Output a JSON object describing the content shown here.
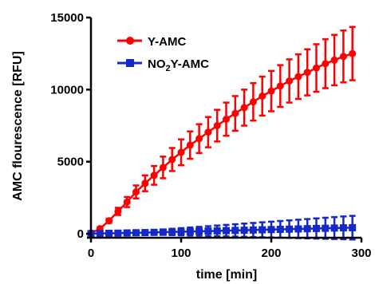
{
  "chart_data": {
    "type": "line",
    "xlabel": "time [min]",
    "ylabel": "AMC flourescence [RFU]",
    "xlim": [
      0,
      300
    ],
    "ylim": [
      0,
      15000
    ],
    "x_ticks": [
      0,
      100,
      200,
      300
    ],
    "y_ticks": [
      0,
      5000,
      10000,
      15000
    ],
    "x_tick_labels": [
      "0",
      "100",
      "200",
      "300"
    ],
    "y_tick_labels": [
      "0",
      "5000",
      "10000",
      "15000"
    ],
    "legend_position": "top-left",
    "grid": false,
    "series": [
      {
        "name": "Y-AMC",
        "color": "#ff0000",
        "marker": "circle",
        "x": [
          0,
          10,
          20,
          30,
          40,
          50,
          60,
          70,
          80,
          90,
          100,
          110,
          120,
          130,
          140,
          150,
          160,
          170,
          180,
          190,
          200,
          210,
          220,
          230,
          240,
          250,
          260,
          270,
          280,
          290
        ],
        "y": [
          50,
          350,
          900,
          1550,
          2200,
          2900,
          3500,
          4050,
          4600,
          5150,
          5650,
          6150,
          6600,
          7050,
          7500,
          7950,
          8350,
          8750,
          9150,
          9550,
          9900,
          10250,
          10600,
          10900,
          11200,
          11500,
          11800,
          12050,
          12300,
          12500
        ],
        "error": [
          20,
          100,
          150,
          250,
          350,
          450,
          550,
          650,
          750,
          800,
          900,
          950,
          1000,
          1050,
          1100,
          1150,
          1200,
          1250,
          1300,
          1350,
          1400,
          1450,
          1500,
          1550,
          1600,
          1650,
          1700,
          1750,
          1800,
          1850
        ]
      },
      {
        "name": "NO2Y-AMC",
        "name_parts": {
          "prefix": "NO",
          "subscript": "2",
          "suffix": "Y-AMC"
        },
        "color": "#1528c8",
        "marker": "square",
        "x": [
          0,
          10,
          20,
          30,
          40,
          50,
          60,
          70,
          80,
          90,
          100,
          110,
          120,
          130,
          140,
          150,
          160,
          170,
          180,
          190,
          200,
          210,
          220,
          230,
          240,
          250,
          260,
          270,
          280,
          290
        ],
        "y": [
          10,
          20,
          30,
          40,
          55,
          70,
          80,
          95,
          110,
          125,
          140,
          155,
          170,
          185,
          200,
          215,
          230,
          245,
          260,
          275,
          290,
          305,
          320,
          335,
          350,
          365,
          380,
          395,
          410,
          420
        ],
        "error": [
          10,
          20,
          40,
          60,
          80,
          100,
          130,
          160,
          190,
          220,
          250,
          280,
          310,
          340,
          370,
          400,
          430,
          460,
          490,
          520,
          550,
          580,
          610,
          640,
          670,
          700,
          730,
          760,
          790,
          820
        ]
      }
    ]
  }
}
